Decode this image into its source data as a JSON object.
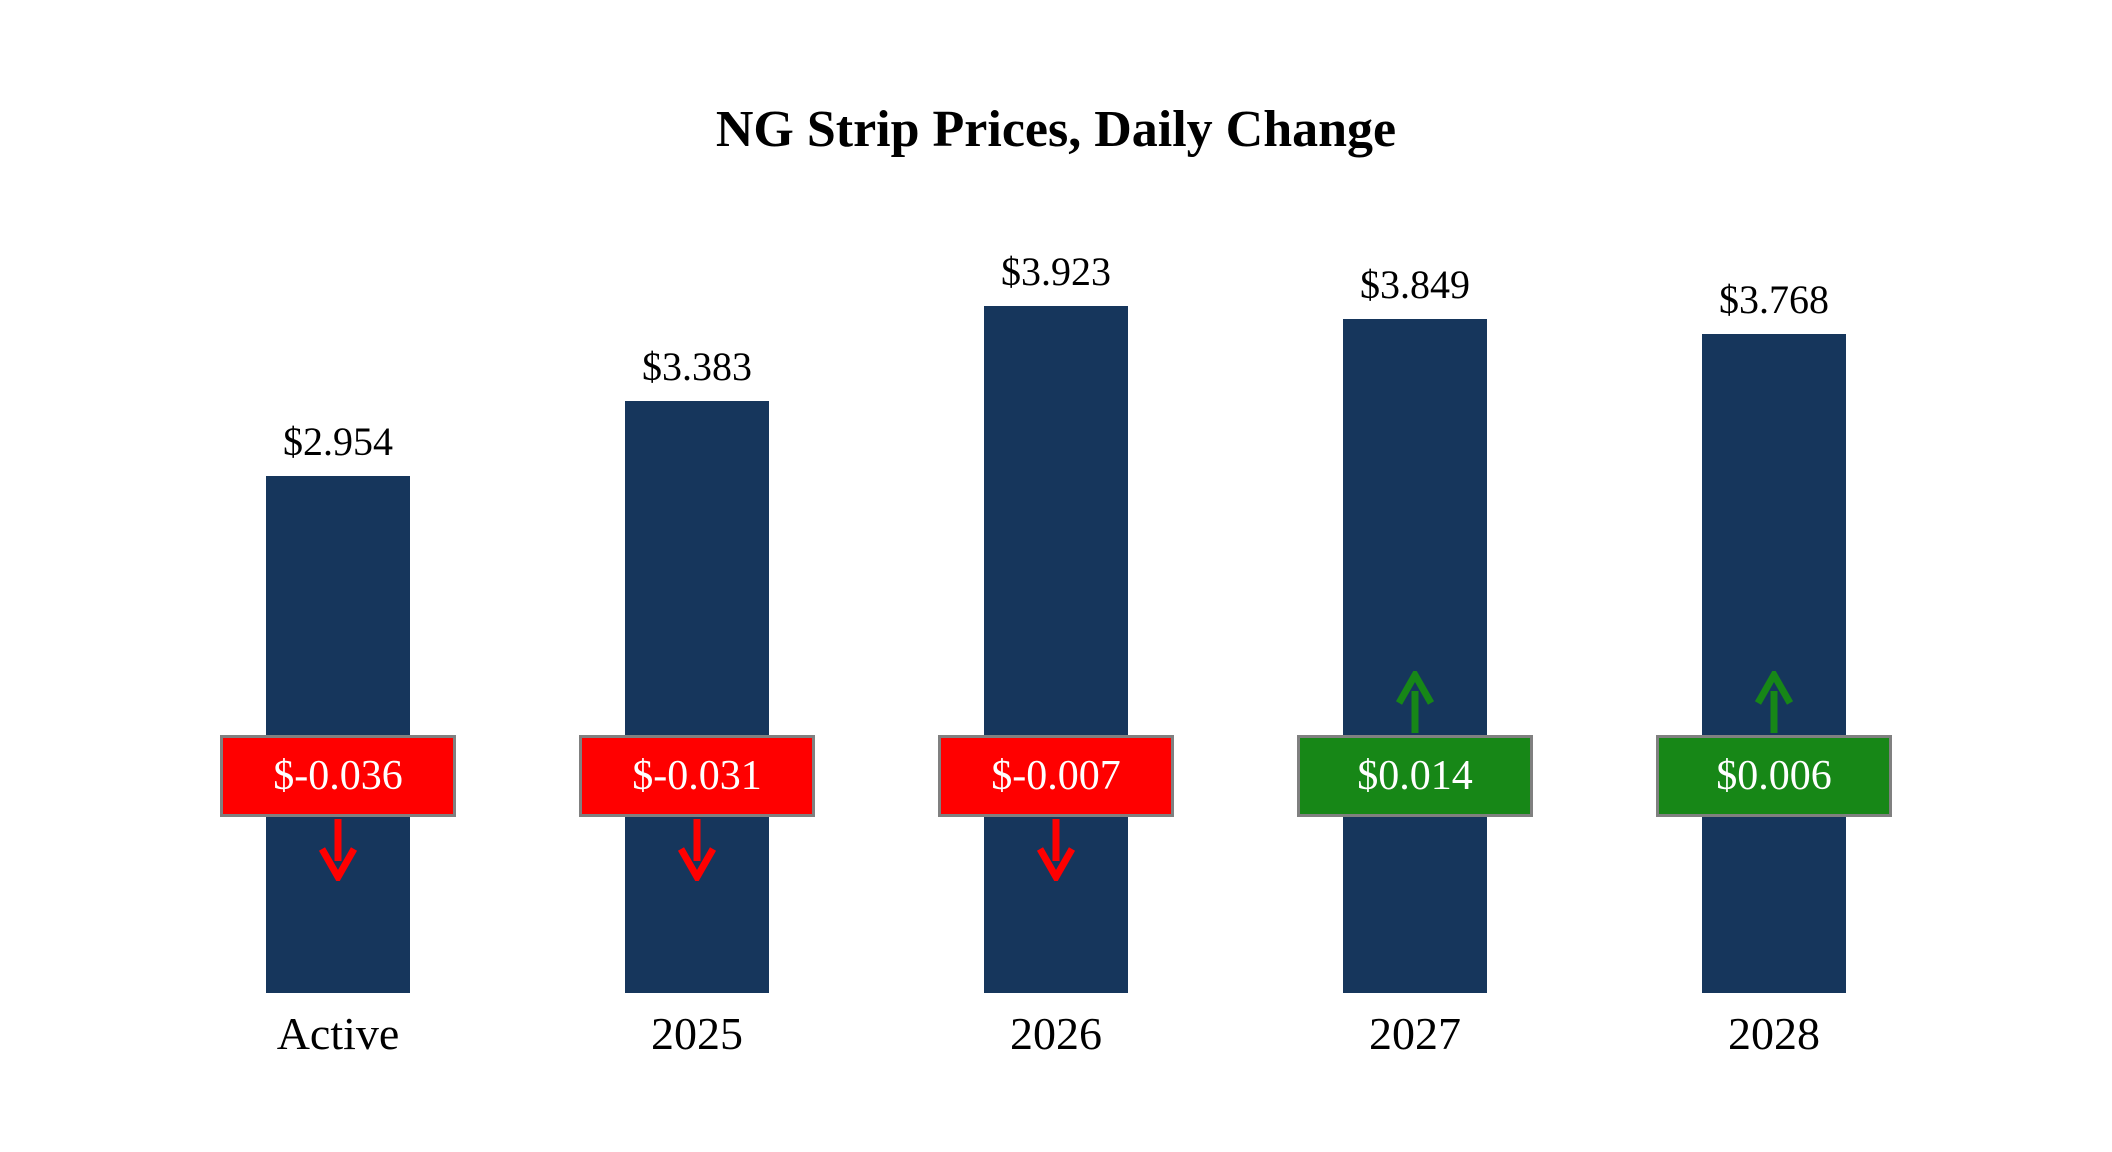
{
  "title": "NG Strip Prices, Daily Change",
  "chart_data": {
    "type": "bar",
    "title": "NG Strip Prices, Daily Change",
    "categories": [
      "Active",
      "2025",
      "2026",
      "2027",
      "2028"
    ],
    "series": [
      {
        "name": "Strip Price",
        "values": [
          2.954,
          3.383,
          3.923,
          3.849,
          3.768
        ]
      },
      {
        "name": "Daily Change",
        "values": [
          -0.036,
          -0.031,
          -0.007,
          0.014,
          0.006
        ]
      }
    ],
    "value_labels": [
      "$2.954",
      "$3.383",
      "$3.923",
      "$3.849",
      "$3.768"
    ],
    "change_labels": [
      "$-0.036",
      "$-0.031",
      "$-0.007",
      "$0.014",
      "$0.006"
    ],
    "ylim": [
      0,
      4.2
    ],
    "grid": false,
    "legend": "none",
    "colors": {
      "bar": "#16365C",
      "negative": "#FF0000",
      "positive": "#178717",
      "badge_border": "#808080",
      "badge_text": "#FFFFFF",
      "label_text": "#000000",
      "background": "#FFFFFF"
    }
  }
}
